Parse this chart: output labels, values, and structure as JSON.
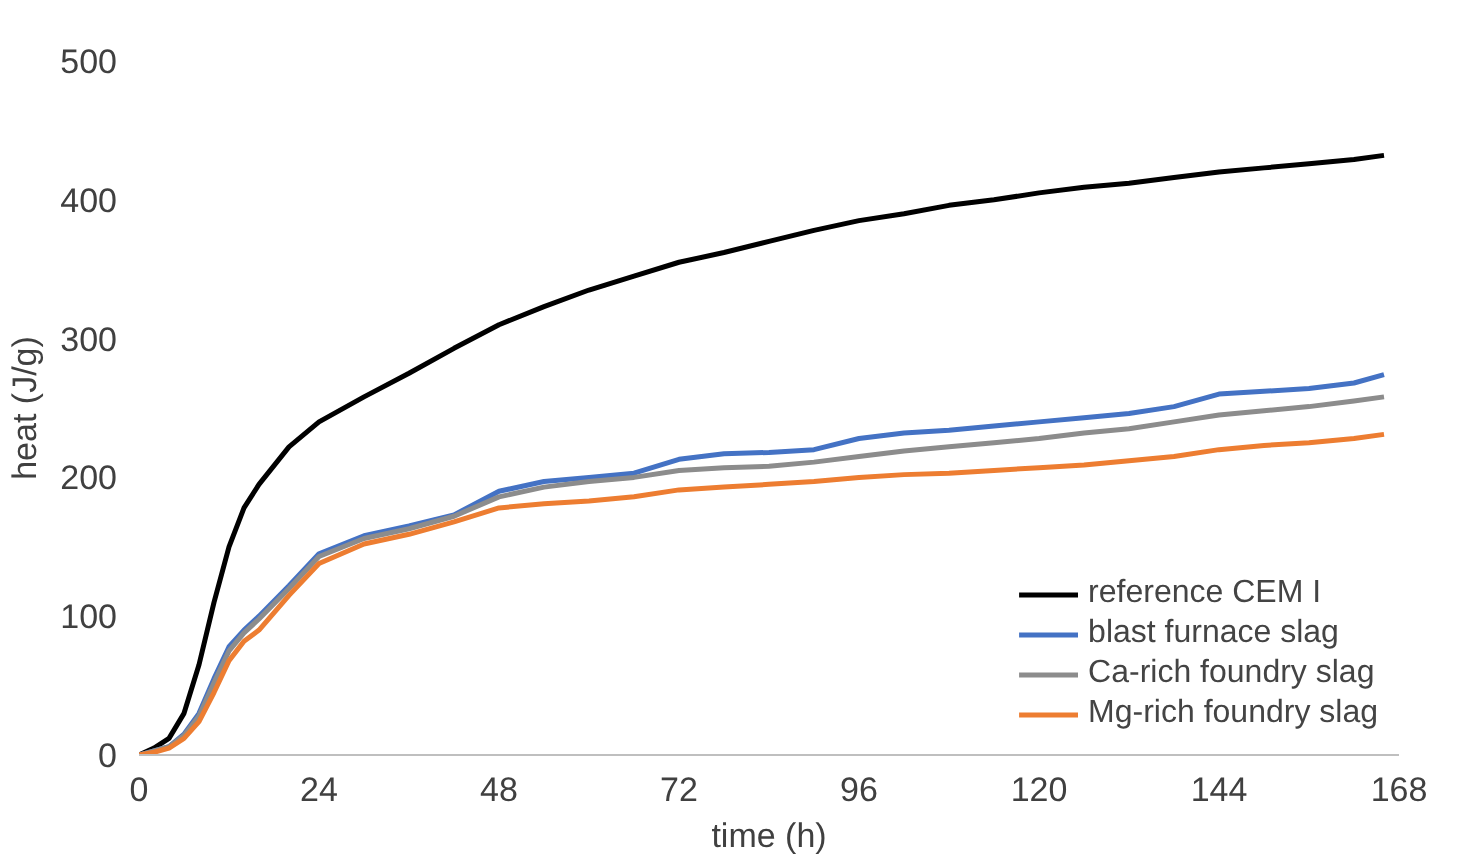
{
  "chart_data": {
    "type": "line",
    "xlabel": "time (h)",
    "ylabel": "heat (J/g)",
    "xlim": [
      0,
      168
    ],
    "xticks": [
      0,
      24,
      48,
      72,
      96,
      120,
      144,
      168
    ],
    "ylim": [
      0,
      500
    ],
    "yticks": [
      0,
      100,
      200,
      300,
      400,
      500
    ],
    "grid": false,
    "legend": "bottom right",
    "line_style": "solid",
    "marker": "none",
    "x": [
      0,
      2,
      4,
      6,
      8,
      10,
      12,
      14,
      16,
      20,
      24,
      30,
      36,
      42,
      48,
      54,
      60,
      66,
      72,
      78,
      84,
      90,
      96,
      102,
      108,
      114,
      120,
      126,
      132,
      138,
      144,
      150,
      156,
      162,
      166
    ],
    "series": [
      {
        "name": "reference CEM I",
        "color": "#000000",
        "values": [
          0,
          5,
          12,
          30,
          65,
          110,
          150,
          178,
          195,
          222,
          240,
          258,
          275,
          293,
          310,
          323,
          335,
          345,
          355,
          362,
          370,
          378,
          385,
          390,
          396,
          400,
          405,
          409,
          412,
          416,
          420,
          423,
          426,
          429,
          432
        ]
      },
      {
        "name": "blast furnace slag",
        "color": "#4472c4",
        "values": [
          0,
          3,
          6,
          15,
          30,
          55,
          78,
          90,
          100,
          122,
          145,
          158,
          165,
          173,
          190,
          197,
          200,
          203,
          213,
          217,
          218,
          220,
          228,
          232,
          234,
          237,
          240,
          243,
          246,
          251,
          260,
          262,
          264,
          268,
          274
        ]
      },
      {
        "name": "Ca-rich foundry slag",
        "color": "#8c8c8c",
        "values": [
          0,
          3,
          6,
          14,
          28,
          52,
          75,
          88,
          98,
          120,
          143,
          156,
          163,
          172,
          186,
          193,
          197,
          200,
          205,
          207,
          208,
          211,
          215,
          219,
          222,
          225,
          228,
          232,
          235,
          240,
          245,
          248,
          251,
          255,
          258
        ]
      },
      {
        "name": "Mg-rich foundry slag",
        "color": "#ed7d31",
        "values": [
          0,
          2,
          5,
          12,
          24,
          45,
          68,
          82,
          90,
          115,
          138,
          152,
          159,
          168,
          178,
          181,
          183,
          186,
          191,
          193,
          195,
          197,
          200,
          202,
          203,
          205,
          207,
          209,
          212,
          215,
          220,
          223,
          225,
          228,
          231
        ]
      }
    ]
  }
}
